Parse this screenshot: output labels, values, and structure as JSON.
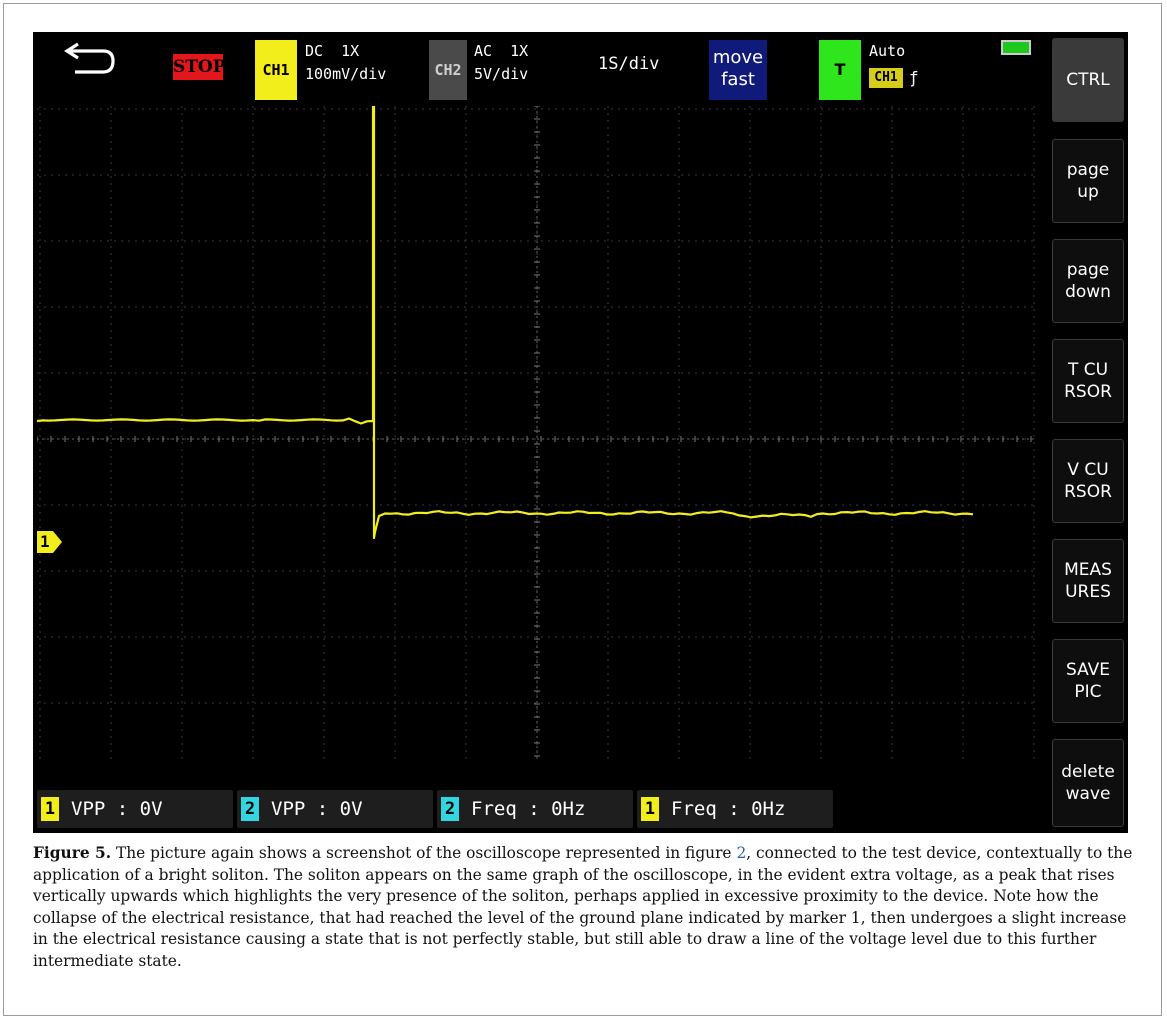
{
  "topbar": {
    "back_icon": "back-arrow-icon",
    "stop_label": "STOP",
    "ch1": {
      "badge": "CH1",
      "coupling": "DC  1X",
      "scale": "100mV/div"
    },
    "ch2": {
      "badge": "CH2",
      "coupling": "AC  1X",
      "scale": "5V/div"
    },
    "timebase": "1S/div",
    "move_mode": {
      "line1": "move",
      "line2": "fast"
    },
    "trigger": {
      "badge": "T",
      "mode": "Auto",
      "source": "CH1",
      "edge_symbol": "ƒ"
    },
    "battery_icon": "battery-icon"
  },
  "sidebar": {
    "buttons": [
      {
        "label": "CTRL"
      },
      {
        "label": "page\nup"
      },
      {
        "label": "page\ndown"
      },
      {
        "label": "T  CU\nRSOR"
      },
      {
        "label": "V  CU\nRSOR"
      },
      {
        "label": "MEAS\nURES"
      },
      {
        "label": "SAVE\nPIC"
      },
      {
        "label": "delete\nwave"
      }
    ]
  },
  "ground_marker": "1",
  "measurements": [
    {
      "channel": "1",
      "text": "VPP : 0V"
    },
    {
      "channel": "2",
      "text": "VPP : 0V"
    },
    {
      "channel": "2",
      "text": "Freq : 0Hz"
    },
    {
      "channel": "1",
      "text": "Freq : 0Hz"
    }
  ],
  "colors": {
    "ch1": "#f2ee1c",
    "ch2": "#33d6e0",
    "stop": "#e3161c",
    "trigger": "#2fe51c",
    "move_bg": "#101a7a",
    "ch2_badge": "#4a4a4a"
  },
  "caption": {
    "label": "Figure 5.",
    "text_before_ref": " The picture again shows a screenshot of the oscilloscope represented in figure ",
    "ref": "2",
    "text_after_ref": ", connected to the test device, contextually to the application of a bright soliton. The soliton appears on the same graph of the oscilloscope, in the evident extra voltage, as a peak that rises vertically upwards which highlights the very presence of the soliton, perhaps applied in excessive proximity to the device. Note how the collapse of the electrical resistance, that had reached the level of the ground plane indicated by marker 1, then undergoes a slight increase in the electrical resistance causing a state that is not perfectly stable, but still able to draw a line of the voltage level due to this further intermediate state."
  }
}
